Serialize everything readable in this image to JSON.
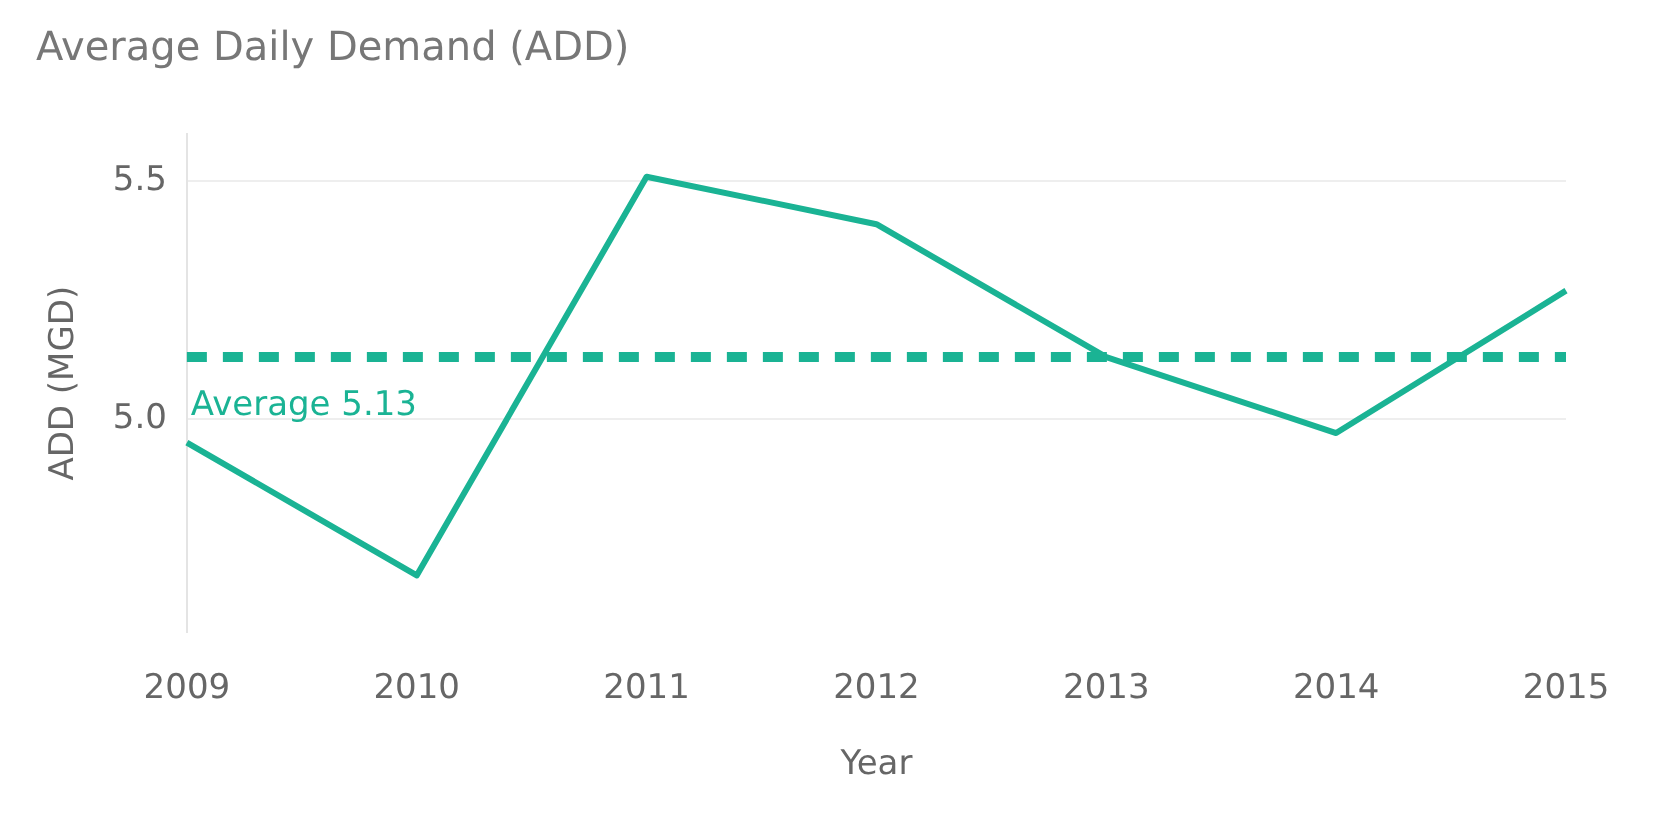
{
  "chart_data": {
    "type": "line",
    "title": "Average Daily Demand (ADD)",
    "xlabel": "Year",
    "ylabel": "ADD (MGD)",
    "categories": [
      "2009",
      "2010",
      "2011",
      "2012",
      "2013",
      "2014",
      "2015"
    ],
    "series": [
      {
        "color": "#1ab394",
        "values": [
          4.95,
          4.67,
          5.51,
          5.41,
          5.13,
          4.97,
          5.27
        ]
      }
    ],
    "ylim": [
      4.55,
      5.6
    ],
    "yticks": [
      {
        "value": 5.0,
        "label": "5.0"
      },
      {
        "value": 5.5,
        "label": "5.5"
      }
    ],
    "ref_lines": [
      {
        "axis": "y",
        "value": 5.13,
        "label": "Average 5.13",
        "color": "#1ab394",
        "line_style": "dashed"
      }
    ],
    "grid": "y",
    "legend": false,
    "marker": "none",
    "line_style": "solid"
  }
}
